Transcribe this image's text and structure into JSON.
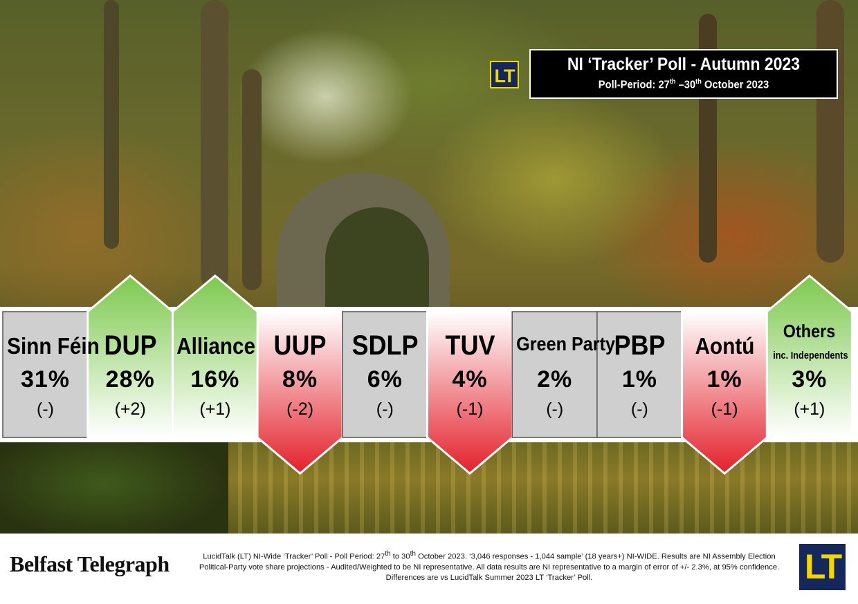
{
  "header": {
    "title": "NI ‘Tracker’ Poll - Autumn 2023",
    "period_prefix": "Poll-Period: 27",
    "period_sup1": "th",
    "period_mid": " –30",
    "period_sup2": "th",
    "period_suffix": " October 2023",
    "logo_text": "LT"
  },
  "chart_data": {
    "type": "bar",
    "categories": [
      "Sinn Féin",
      "DUP",
      "Alliance",
      "UUP",
      "SDLP",
      "TUV",
      "Green Party",
      "PBP",
      "Aontú",
      "Others"
    ],
    "category_subtitles": [
      "",
      "",
      "",
      "",
      "",
      "",
      "",
      "",
      "",
      "inc. Independents"
    ],
    "values": [
      31,
      28,
      16,
      8,
      6,
      4,
      2,
      1,
      1,
      3
    ],
    "value_labels": [
      "31%",
      "28%",
      "16%",
      "8%",
      "6%",
      "4%",
      "2%",
      "1%",
      "1%",
      "3%"
    ],
    "changes": [
      0,
      2,
      1,
      -2,
      0,
      -1,
      0,
      0,
      -1,
      1
    ],
    "change_labels": [
      "(-)",
      "(+2)",
      "(+1)",
      "(-2)",
      "(-)",
      "(-1)",
      "(-)",
      "(-)",
      "(-1)",
      "(+1)"
    ],
    "colors": {
      "up": "#7cc94d",
      "down": "#e3202a",
      "same": "#cfcfcf"
    }
  },
  "footer": {
    "publisher": "Belfast Telegraph",
    "note_a": "LucidTalk (LT) NI-Wide ‘Tracker’ Poll - Poll Period: 27",
    "note_sup1": "th",
    "note_b": " to 30",
    "note_sup2": "th",
    "note_c": " October 2023.  ‘3,046 responses - 1,044 sample’ (18 years+) NI-WIDE. Results are NI Assembly Election Political-Party vote share projections - Audited/Weighted to be NI representative.  All data results are NI representative to a margin of error of +/- 2.3%, at 95% confidence.",
    "note_d": "Differences are vs LucidTalk Summer 2023 LT ‘Tracker’ Poll.",
    "logo_text": "LT"
  }
}
